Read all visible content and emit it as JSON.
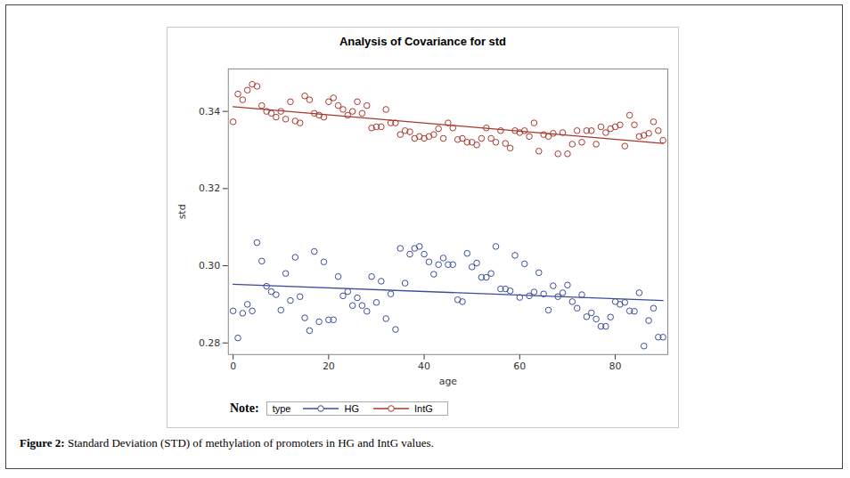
{
  "chart_data": {
    "type": "scatter",
    "title": "Analysis of Covariance for std",
    "x_label": "age",
    "y_label": "std",
    "xlim": [
      -1,
      91
    ],
    "ylim": [
      0.277,
      0.351
    ],
    "xticks": [
      0,
      20,
      40,
      60,
      80
    ],
    "yticks": [
      0.28,
      {
        "value": 0.3,
        "label": "0.30"
      },
      0.32,
      0.34
    ],
    "grid": false,
    "legend": "bottom",
    "note_label": "Note:",
    "legend_title": "type",
    "caption_label": "Figure 2:",
    "caption": "Standard Deviation (STD) of methylation of promoters in HG and IntG values.",
    "fit_x": [
      0,
      90
    ],
    "x": [
      0,
      1,
      2,
      3,
      4,
      5,
      6,
      7,
      8,
      9,
      10,
      11,
      12,
      13,
      14,
      15,
      16,
      17,
      18,
      19,
      20,
      21,
      22,
      23,
      24,
      25,
      26,
      27,
      28,
      29,
      30,
      31,
      32,
      33,
      34,
      35,
      36,
      37,
      38,
      39,
      40,
      41,
      42,
      43,
      44,
      45,
      46,
      47,
      48,
      49,
      50,
      51,
      52,
      53,
      54,
      55,
      56,
      57,
      58,
      59,
      60,
      61,
      62,
      63,
      64,
      65,
      66,
      67,
      68,
      69,
      70,
      71,
      72,
      73,
      74,
      75,
      76,
      77,
      78,
      79,
      80,
      81,
      82,
      83,
      84,
      85,
      86,
      87,
      88,
      89,
      90
    ],
    "series": [
      {
        "name": "HG",
        "color": "#3b4d9a",
        "marker": "circle",
        "line_style": "solid",
        "fit": [
          0.2952,
          0.291
        ],
        "values": [
          0.2883,
          0.2813,
          0.2877,
          0.29,
          0.2883,
          0.306,
          0.3012,
          0.2947,
          0.2933,
          0.2925,
          0.2885,
          0.298,
          0.291,
          0.3022,
          0.292,
          0.2865,
          0.2832,
          0.3037,
          0.2855,
          0.301,
          0.286,
          0.286,
          0.2972,
          0.2922,
          0.2933,
          0.2897,
          0.2917,
          0.2897,
          0.2882,
          0.2972,
          0.2905,
          0.296,
          0.2863,
          0.2927,
          0.2835,
          0.3045,
          0.2955,
          0.303,
          0.3045,
          0.305,
          0.303,
          0.301,
          0.2978,
          0.3003,
          0.302,
          0.3003,
          0.3003,
          0.2912,
          0.2907,
          0.3032,
          0.2997,
          0.3007,
          0.297,
          0.297,
          0.298,
          0.305,
          0.294,
          0.294,
          0.2935,
          0.3027,
          0.2918,
          0.3005,
          0.2922,
          0.2932,
          0.2982,
          0.2927,
          0.2885,
          0.2948,
          0.292,
          0.293,
          0.295,
          0.2907,
          0.289,
          0.2925,
          0.2868,
          0.2878,
          0.2862,
          0.2843,
          0.2843,
          0.2867,
          0.2907,
          0.29,
          0.2905,
          0.2883,
          0.2882,
          0.293,
          0.2792,
          0.2858,
          0.289,
          0.2815,
          0.2815
        ]
      },
      {
        "name": "IntG",
        "color": "#a8372c",
        "marker": "circle",
        "line_style": "solid",
        "fit": [
          0.3412,
          0.3317
        ],
        "values": [
          0.3373,
          0.3445,
          0.343,
          0.3455,
          0.347,
          0.3465,
          0.3415,
          0.34,
          0.3395,
          0.3385,
          0.34,
          0.338,
          0.3425,
          0.3375,
          0.337,
          0.344,
          0.343,
          0.3395,
          0.339,
          0.3385,
          0.3425,
          0.3435,
          0.3415,
          0.3405,
          0.339,
          0.34,
          0.3425,
          0.3395,
          0.3415,
          0.3357,
          0.336,
          0.336,
          0.3405,
          0.337,
          0.337,
          0.334,
          0.335,
          0.3347,
          0.333,
          0.3335,
          0.333,
          0.3335,
          0.334,
          0.3355,
          0.333,
          0.337,
          0.3357,
          0.3327,
          0.333,
          0.332,
          0.332,
          0.3313,
          0.333,
          0.3357,
          0.333,
          0.332,
          0.335,
          0.3317,
          0.3305,
          0.335,
          0.3345,
          0.335,
          0.3335,
          0.337,
          0.3297,
          0.334,
          0.3335,
          0.3343,
          0.329,
          0.3345,
          0.329,
          0.3315,
          0.335,
          0.332,
          0.335,
          0.335,
          0.3315,
          0.336,
          0.3345,
          0.3355,
          0.336,
          0.3365,
          0.331,
          0.339,
          0.3365,
          0.3335,
          0.3338,
          0.3343,
          0.3373,
          0.335,
          0.3325
        ]
      }
    ]
  }
}
